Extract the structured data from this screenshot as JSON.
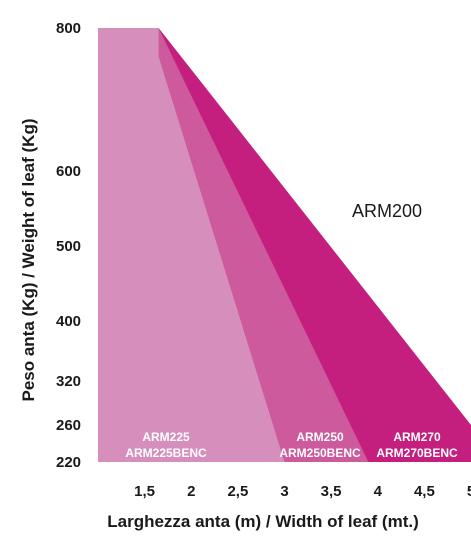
{
  "chart_data": {
    "type": "area",
    "xlabel": "Larghezza anta (m) / Width of leaf (mt.)",
    "ylabel": "Peso anta (Kg) / Weight of leaf (Kg)",
    "xlim": [
      1.0,
      5.0
    ],
    "ylim": [
      220,
      800
    ],
    "x_ticks": [
      "1,5",
      "2",
      "2,5",
      "3",
      "3,5",
      "4",
      "4,5",
      "5"
    ],
    "x_tick_values": [
      1.5,
      2,
      2.5,
      3,
      3.5,
      4,
      4.5,
      5
    ],
    "y_ticks": [
      "800",
      "600",
      "500",
      "400",
      "320",
      "260",
      "220"
    ],
    "y_tick_values": [
      800,
      600,
      500,
      400,
      320,
      260,
      220
    ],
    "series": [
      {
        "name": "ARM200",
        "label_lines": [
          "ARM200"
        ],
        "color": "#c41f7e",
        "points": [
          [
            1.0,
            800
          ],
          [
            1.65,
            800
          ],
          [
            5.0,
            260
          ],
          [
            5.0,
            220
          ],
          [
            1.0,
            220
          ]
        ]
      },
      {
        "name": "ARM250",
        "label_lines": [
          "ARM250",
          "ARM250BENC"
        ],
        "color": "#cc5a9c",
        "points": [
          [
            1.0,
            800
          ],
          [
            1.65,
            800
          ],
          [
            3.9,
            220
          ],
          [
            1.0,
            220
          ]
        ]
      },
      {
        "name": "ARM225",
        "label_lines": [
          "ARM225",
          "ARM225BENC"
        ],
        "color": "#d68fbd",
        "points": [
          [
            1.0,
            800
          ],
          [
            1.65,
            800
          ],
          [
            1.65,
            760
          ],
          [
            3.0,
            220
          ],
          [
            1.0,
            220
          ]
        ]
      },
      {
        "name": "ARM270",
        "label_lines": [
          "ARM270",
          "ARM270BENC"
        ],
        "color": "#c41f7e",
        "points": []
      }
    ]
  }
}
